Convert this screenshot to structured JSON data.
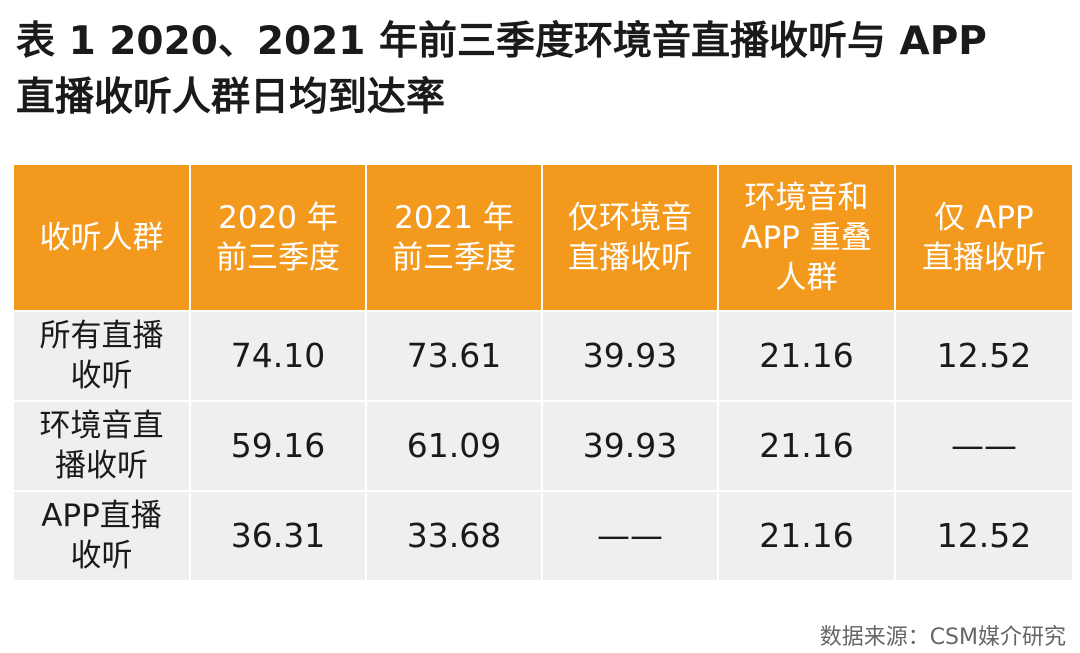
{
  "title": {
    "line1": "表 1 2020、2021 年前三季度环境音直播收听与 APP",
    "line2": "直播收听人群日均到达率"
  },
  "table": {
    "headers": [
      "收听人群",
      "2020 年\n前三季度",
      "2021 年\n前三季度",
      "仅环境音\n直播收听",
      "环境音和\nAPP 重叠\n人群",
      "仅 APP\n直播收听"
    ],
    "rows": [
      {
        "label": "所有直播\n收听",
        "values": [
          "74.10",
          "73.61",
          "39.93",
          "21.16",
          "12.52"
        ]
      },
      {
        "label": "环境音直\n播收听",
        "values": [
          "59.16",
          "61.09",
          "39.93",
          "21.16",
          "——"
        ]
      },
      {
        "label": "APP直播\n收听",
        "values": [
          "36.31",
          "33.68",
          "——",
          "21.16",
          "12.52"
        ]
      }
    ]
  },
  "source": "数据来源：CSM媒介研究",
  "colors": {
    "header_bg": "#f39a1e",
    "cell_bg": "#efefef"
  }
}
